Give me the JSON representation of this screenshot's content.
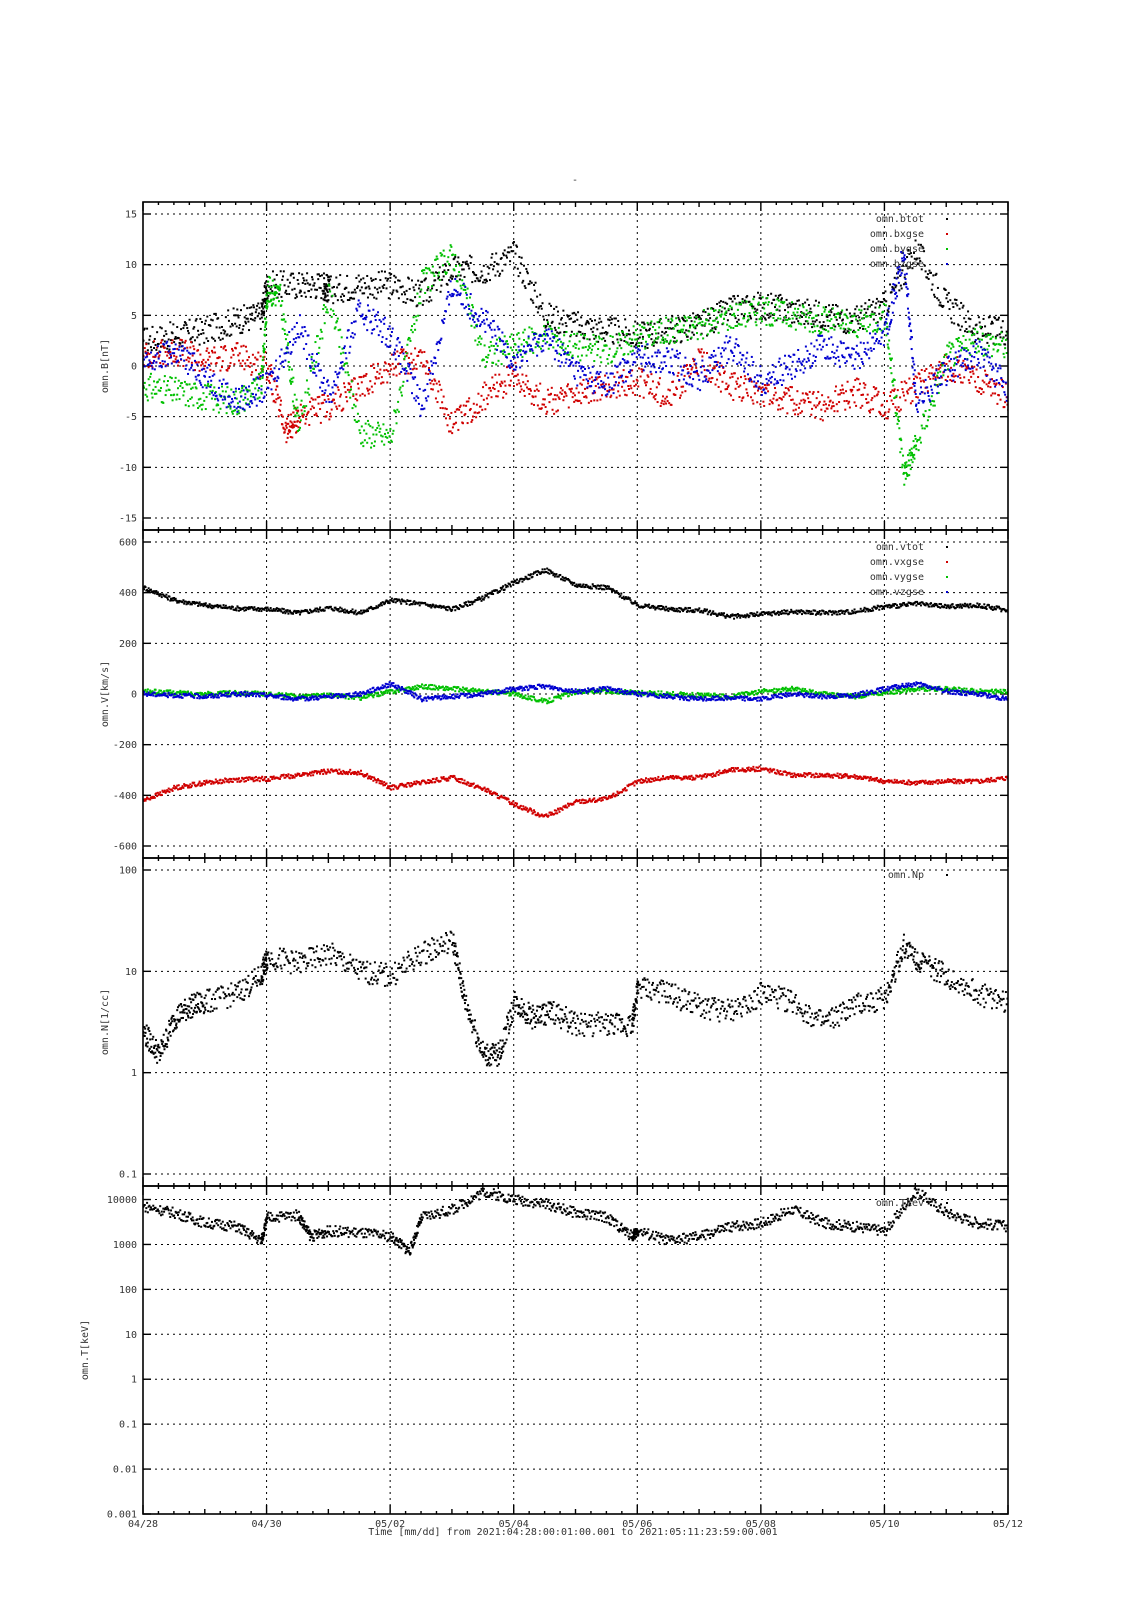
{
  "figure": {
    "title": "-",
    "footer": "Time [mm/dd]  from 2021:04:28:00:01:00.001  to  2021:05:11:23:59:00.001"
  },
  "chart_data": [
    {
      "type": "scatter",
      "ylabel": "omn.B[nT]",
      "yscale": "linear",
      "ylim": [
        -15,
        15
      ],
      "yticks": [
        15,
        10,
        5,
        0,
        -5,
        -10,
        -15
      ],
      "ytick_labels": [
        "15",
        "10",
        "5",
        "0",
        "-5",
        "-10",
        "-15"
      ],
      "grid": true,
      "legend_position": "top-right",
      "series": [
        {
          "name": "omn.btot",
          "color": "#000000",
          "x": [
            0.0,
            0.5,
            1.0,
            1.5,
            1.9,
            2.0,
            2.5,
            2.9,
            3.0,
            3.5,
            4.0,
            4.5,
            5.0,
            5.5,
            6.0,
            6.5,
            7.0,
            7.5,
            8.0,
            8.5,
            9.0,
            9.5,
            10.0,
            10.5,
            11.0,
            11.5,
            12.0,
            12.5,
            13.0,
            13.5,
            14.0
          ],
          "y": [
            2.5,
            3.0,
            3.5,
            4.5,
            5.0,
            8.0,
            8.0,
            8.0,
            7.5,
            8.0,
            8.0,
            7.0,
            9.5,
            9.5,
            11.0,
            5.0,
            4.0,
            3.5,
            3.0,
            3.5,
            4.0,
            5.5,
            6.0,
            5.5,
            5.0,
            4.5,
            6.0,
            11.5,
            6.0,
            3.5,
            3.5
          ]
        },
        {
          "name": "omn.bxgse",
          "color": "#d00000",
          "x": [
            0.0,
            0.5,
            1.0,
            1.5,
            2.0,
            2.3,
            2.5,
            3.0,
            3.5,
            4.0,
            4.5,
            5.0,
            5.5,
            6.0,
            6.5,
            7.0,
            7.5,
            8.0,
            8.5,
            9.0,
            9.5,
            10.0,
            10.5,
            11.0,
            11.5,
            12.0,
            12.5,
            13.0,
            13.5,
            14.0
          ],
          "y": [
            1.0,
            1.5,
            0.5,
            1.0,
            0.0,
            -6.5,
            -5.0,
            -4.0,
            -2.0,
            0.0,
            1.0,
            -6.0,
            -3.0,
            -1.0,
            -3.5,
            -3.0,
            -2.0,
            -1.5,
            -3.0,
            0.5,
            -2.0,
            -2.5,
            -3.5,
            -4.0,
            -2.5,
            -4.0,
            -2.0,
            0.0,
            -1.5,
            -3.0
          ]
        },
        {
          "name": "omn.bygse",
          "color": "#00c000",
          "x": [
            0.0,
            0.5,
            1.0,
            1.5,
            1.9,
            2.0,
            2.2,
            2.5,
            3.0,
            3.5,
            4.0,
            4.5,
            5.0,
            5.5,
            6.0,
            6.5,
            7.0,
            7.5,
            8.0,
            8.5,
            9.0,
            9.5,
            10.0,
            10.5,
            11.0,
            11.5,
            12.0,
            12.3,
            12.5,
            13.0,
            13.5,
            14.0
          ],
          "y": [
            -2.0,
            -2.5,
            -3.0,
            -3.5,
            -2.0,
            7.5,
            7.0,
            -6.0,
            7.0,
            -6.5,
            -7.0,
            8.0,
            11.0,
            1.0,
            2.0,
            3.0,
            2.0,
            1.5,
            3.0,
            3.5,
            4.0,
            5.0,
            5.5,
            5.0,
            4.5,
            4.0,
            5.0,
            -10.5,
            -8.0,
            1.0,
            2.5,
            2.0
          ]
        },
        {
          "name": "omn.bzgse",
          "color": "#0000d0",
          "x": [
            0.0,
            0.5,
            1.0,
            1.5,
            2.0,
            2.5,
            3.0,
            3.5,
            4.0,
            4.5,
            5.0,
            5.5,
            6.0,
            6.5,
            7.0,
            7.5,
            8.0,
            8.5,
            9.0,
            9.5,
            10.0,
            10.5,
            11.0,
            11.5,
            12.0,
            12.3,
            12.5,
            13.0,
            13.5,
            14.0
          ],
          "y": [
            0.0,
            1.5,
            -1.0,
            -3.5,
            -2.0,
            4.0,
            -3.0,
            5.5,
            3.0,
            -4.0,
            8.0,
            4.5,
            0.5,
            3.0,
            -0.5,
            -2.0,
            1.0,
            0.5,
            -1.0,
            2.0,
            -1.5,
            0.0,
            2.0,
            0.5,
            3.5,
            11.0,
            -3.5,
            -0.5,
            1.5,
            -2.5
          ]
        }
      ]
    },
    {
      "type": "scatter",
      "ylabel": "omn.V[km/s]",
      "yscale": "linear",
      "ylim": [
        -600,
        600
      ],
      "yticks": [
        600,
        400,
        200,
        0,
        -200,
        -400,
        -600
      ],
      "ytick_labels": [
        "600",
        "400",
        "200",
        "0",
        "-200",
        "-400",
        "-600"
      ],
      "grid": true,
      "legend_position": "top-right",
      "series": [
        {
          "name": "omn.vtot",
          "color": "#000000",
          "x": [
            0.0,
            0.5,
            1.0,
            1.5,
            2.0,
            2.5,
            3.0,
            3.5,
            4.0,
            4.5,
            5.0,
            5.5,
            6.0,
            6.5,
            7.0,
            7.5,
            8.0,
            8.5,
            9.0,
            9.5,
            10.0,
            10.5,
            11.0,
            11.5,
            12.0,
            12.5,
            13.0,
            13.5,
            14.0
          ],
          "y": [
            420,
            370,
            350,
            338,
            335,
            320,
            340,
            320,
            370,
            355,
            335,
            380,
            440,
            490,
            430,
            420,
            350,
            335,
            330,
            305,
            315,
            325,
            320,
            325,
            345,
            355,
            345,
            350,
            330
          ]
        },
        {
          "name": "omn.vxgse",
          "color": "#d00000",
          "x": [
            0.0,
            0.5,
            1.0,
            1.5,
            2.0,
            2.5,
            3.0,
            3.5,
            4.0,
            4.5,
            5.0,
            5.5,
            6.0,
            6.5,
            7.0,
            7.5,
            8.0,
            8.5,
            9.0,
            9.5,
            10.0,
            10.5,
            11.0,
            11.5,
            12.0,
            12.5,
            13.0,
            13.5,
            14.0
          ],
          "y": [
            -420,
            -370,
            -350,
            -338,
            -335,
            -320,
            -305,
            -310,
            -370,
            -350,
            -330,
            -375,
            -435,
            -485,
            -425,
            -415,
            -345,
            -330,
            -330,
            -300,
            -295,
            -320,
            -320,
            -325,
            -345,
            -350,
            -345,
            -345,
            -330
          ]
        },
        {
          "name": "omn.vygse",
          "color": "#00c000",
          "x": [
            0.0,
            0.5,
            1.0,
            1.5,
            2.0,
            2.5,
            3.0,
            3.5,
            4.0,
            4.5,
            5.0,
            5.5,
            6.0,
            6.5,
            7.0,
            7.5,
            8.0,
            8.5,
            9.0,
            9.5,
            10.0,
            10.5,
            11.0,
            11.5,
            12.0,
            12.5,
            13.0,
            13.5,
            14.0
          ],
          "y": [
            10,
            5,
            0,
            5,
            0,
            -10,
            -5,
            -15,
            10,
            30,
            20,
            10,
            0,
            -30,
            10,
            10,
            5,
            0,
            -5,
            -10,
            10,
            20,
            0,
            -10,
            5,
            20,
            20,
            10,
            10
          ]
        },
        {
          "name": "omn.vzgse",
          "color": "#0000d0",
          "x": [
            0.0,
            0.5,
            1.0,
            1.5,
            2.0,
            2.5,
            3.0,
            3.5,
            4.0,
            4.5,
            5.0,
            5.5,
            6.0,
            6.5,
            7.0,
            7.5,
            8.0,
            8.5,
            9.0,
            9.5,
            10.0,
            10.5,
            11.0,
            11.5,
            12.0,
            12.5,
            13.0,
            13.5,
            14.0
          ],
          "y": [
            0,
            -5,
            -10,
            0,
            -5,
            -20,
            -10,
            0,
            40,
            -20,
            -10,
            0,
            20,
            30,
            10,
            20,
            0,
            -10,
            -20,
            -15,
            -20,
            0,
            -10,
            -5,
            20,
            40,
            10,
            0,
            -20
          ]
        }
      ]
    },
    {
      "type": "scatter",
      "ylabel": "omn.N[1/cc]",
      "yscale": "log",
      "ylim": [
        0.1,
        100
      ],
      "yticks": [
        100,
        10,
        1,
        0.1
      ],
      "ytick_labels": [
        "100",
        "10",
        "1",
        "0.1"
      ],
      "grid": true,
      "legend_position": "top-right",
      "series": [
        {
          "name": "omn.Np",
          "color": "#000000",
          "x": [
            0.0,
            0.25,
            0.5,
            0.75,
            1.0,
            1.5,
            1.9,
            2.0,
            2.5,
            3.0,
            3.5,
            4.0,
            4.5,
            5.0,
            5.2,
            5.5,
            5.75,
            6.0,
            6.3,
            6.6,
            7.0,
            7.5,
            7.9,
            8.0,
            8.5,
            9.0,
            9.5,
            10.0,
            10.5,
            11.0,
            11.5,
            12.0,
            12.3,
            12.6,
            13.0,
            13.5,
            14.0
          ],
          "y": [
            2.5,
            1.5,
            3.5,
            4.5,
            5.0,
            6.0,
            9.0,
            14.0,
            12.0,
            15.0,
            10.0,
            9.0,
            15.0,
            20.0,
            5.0,
            1.5,
            1.5,
            5.0,
            3.5,
            4.0,
            3.0,
            3.0,
            3.0,
            7.0,
            6.0,
            4.5,
            4.0,
            6.0,
            5.0,
            3.0,
            4.5,
            5.5,
            18.0,
            12.0,
            9.0,
            6.0,
            5.0
          ]
        }
      ]
    },
    {
      "type": "scatter",
      "ylabel": "omn.T[keV]",
      "yscale": "log",
      "ylim": [
        0.001,
        20000
      ],
      "yticks": [
        10000,
        1000,
        100,
        10,
        1,
        0.1,
        0.01,
        0.001
      ],
      "ytick_labels": [
        "10000",
        "1000",
        "100",
        "10",
        "1",
        "0.1",
        "0.01",
        "0.001"
      ],
      "grid": true,
      "legend_position": "top-right",
      "series": [
        {
          "name": "omn.Tkev",
          "color": "#000000",
          "x": [
            0.0,
            0.5,
            1.0,
            1.5,
            1.9,
            2.0,
            2.5,
            2.7,
            3.0,
            3.5,
            4.0,
            4.3,
            4.5,
            5.0,
            5.5,
            6.0,
            6.5,
            7.0,
            7.5,
            7.9,
            8.0,
            8.5,
            9.0,
            9.5,
            10.0,
            10.5,
            11.0,
            11.5,
            12.0,
            12.5,
            13.0,
            13.5,
            14.0
          ],
          "y": [
            7000,
            5000,
            3000,
            2500,
            1200,
            4000,
            4500,
            1500,
            2000,
            1800,
            1500,
            700,
            4000,
            6000,
            15000,
            10000,
            8000,
            5000,
            4000,
            1500,
            2000,
            1200,
            1500,
            2500,
            3000,
            6000,
            3000,
            2500,
            2000,
            15000,
            5000,
            3000,
            2500
          ]
        }
      ]
    }
  ],
  "xaxis": {
    "ticks": [
      0,
      2,
      4,
      6,
      8,
      10,
      12,
      14
    ],
    "tick_labels": [
      "04/28",
      "04/30",
      "05/02",
      "05/04",
      "05/06",
      "05/08",
      "05/10",
      "05/12"
    ]
  }
}
